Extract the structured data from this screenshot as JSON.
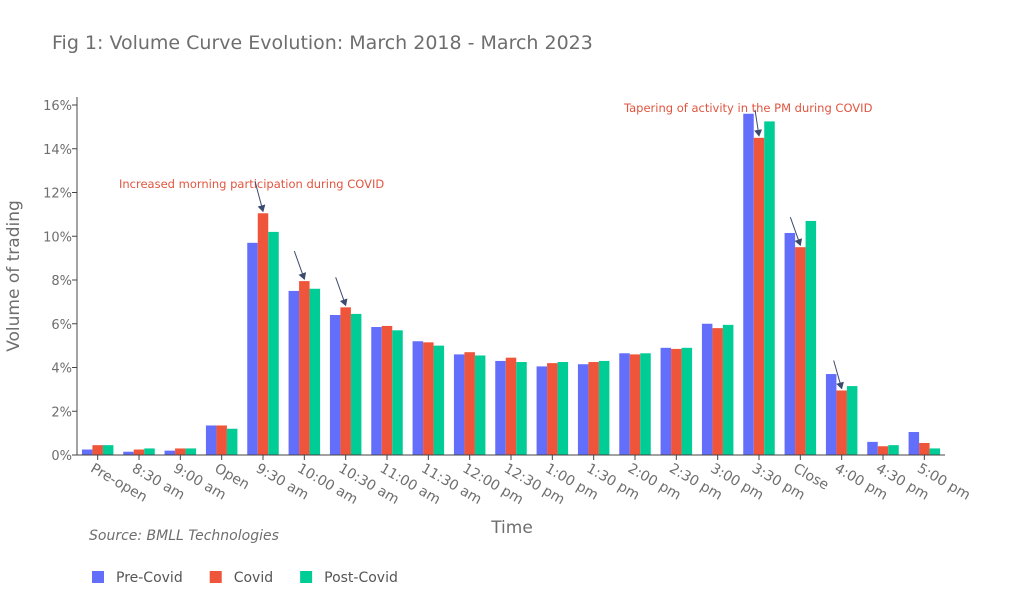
{
  "colors": {
    "Pre-Covid": "#636efa",
    "Covid": "#ef553b",
    "Post-Covid": "#00cc96",
    "annotation": "#e0553f",
    "arrow": "#3c4a6e",
    "axis": "#444444",
    "text": "#6e6e6e"
  },
  "source": "Source: BMLL Technologies",
  "chart_data": {
    "type": "bar",
    "title": "Fig 1: Volume Curve Evolution: March 2018 - March 2023",
    "xlabel": "Time",
    "ylabel": "Volume of trading",
    "ylim": [
      0,
      16
    ],
    "y_ticks": [
      "0%",
      "2%",
      "4%",
      "6%",
      "8%",
      "10%",
      "12%",
      "14%",
      "16%"
    ],
    "grid": false,
    "legend_position": "bottom-left",
    "categories": [
      "Pre-open",
      "8:30 am",
      "9:00 am",
      "Open",
      "9:30 am",
      "10:00 am",
      "10:30 am",
      "11:00 am",
      "11:30 am",
      "12:00 pm",
      "12:30 pm",
      "1:00 pm",
      "1:30 pm",
      "2:00 pm",
      "2:30 pm",
      "3:00 pm",
      "3:30 pm",
      "Close",
      "4:00 pm",
      "4:30 pm",
      "5:00 pm"
    ],
    "series": [
      {
        "name": "Pre-Covid",
        "values": [
          0.25,
          0.15,
          0.2,
          1.35,
          9.7,
          7.5,
          6.4,
          5.85,
          5.2,
          4.6,
          4.3,
          4.05,
          4.15,
          4.65,
          4.9,
          6.0,
          15.6,
          10.15,
          3.7,
          0.6,
          1.05
        ]
      },
      {
        "name": "Covid",
        "values": [
          0.45,
          0.25,
          0.3,
          1.35,
          11.05,
          7.95,
          6.75,
          5.9,
          5.15,
          4.7,
          4.45,
          4.2,
          4.25,
          4.6,
          4.85,
          5.8,
          14.5,
          9.5,
          2.95,
          0.4,
          0.55
        ]
      },
      {
        "name": "Post-Covid",
        "values": [
          0.45,
          0.3,
          0.3,
          1.2,
          10.2,
          7.6,
          6.45,
          5.7,
          5.0,
          4.55,
          4.25,
          4.25,
          4.3,
          4.65,
          4.9,
          5.95,
          15.25,
          10.7,
          3.15,
          0.45,
          0.3
        ]
      }
    ],
    "annotations": [
      {
        "text": "Increased morning participation during COVID"
      },
      {
        "text": "Tapering of activity in the PM during COVID"
      }
    ]
  }
}
